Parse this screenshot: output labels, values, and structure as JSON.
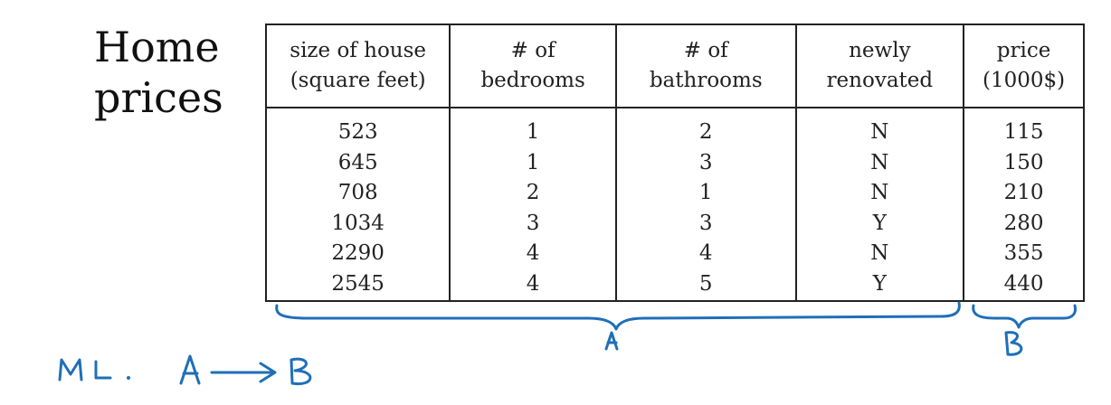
{
  "title": "Home\nprices",
  "table": {
    "headers": [
      [
        "size of house",
        "(square feet)"
      ],
      [
        "# of",
        "bedrooms"
      ],
      [
        "# of",
        "bathrooms"
      ],
      [
        "newly",
        "renovated"
      ],
      [
        "price",
        "(1000$)"
      ]
    ],
    "columns": [
      [
        "523",
        "645",
        "708",
        "1034",
        "2290",
        "2545"
      ],
      [
        "1",
        "1",
        "2",
        "3",
        "4",
        "4"
      ],
      [
        "2",
        "3",
        "1",
        "3",
        "4",
        "5"
      ],
      [
        "N",
        "N",
        "N",
        "Y",
        "N",
        "Y"
      ],
      [
        "115",
        "150",
        "210",
        "280",
        "355",
        "440"
      ]
    ]
  },
  "annotations": {
    "input_brace_label": "A",
    "output_brace_label": "B",
    "handwritten_note": "ML. A → B",
    "ink_color": "#1f6fb8"
  }
}
